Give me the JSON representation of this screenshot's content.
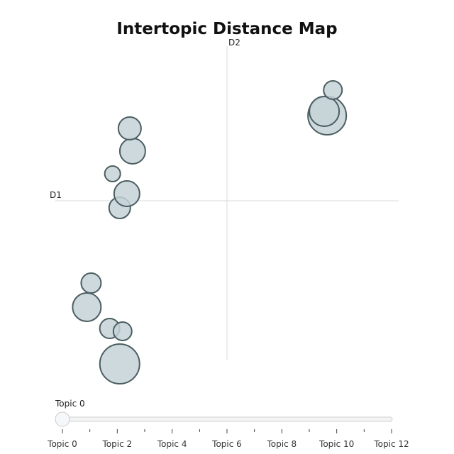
{
  "chart_data": {
    "type": "scatter",
    "title": "Intertopic Distance Map",
    "xlabel": "D1",
    "ylabel": "D2",
    "xlim": [
      -12,
      12
    ],
    "ylim": [
      -12,
      12
    ],
    "grid": false,
    "points": [
      {
        "x": -7.5,
        "y": -11.5,
        "size": 28
      },
      {
        "x": -9.8,
        "y": -7.5,
        "size": 20
      },
      {
        "x": -8.2,
        "y": -9.0,
        "size": 14
      },
      {
        "x": -7.3,
        "y": -9.2,
        "size": 13
      },
      {
        "x": -9.5,
        "y": -5.8,
        "size": 14
      },
      {
        "x": -7.5,
        "y": -0.5,
        "size": 15
      },
      {
        "x": -7.0,
        "y": 0.5,
        "size": 18
      },
      {
        "x": -8.0,
        "y": 1.9,
        "size": 11
      },
      {
        "x": -6.6,
        "y": 3.5,
        "size": 18
      },
      {
        "x": -6.8,
        "y": 5.1,
        "size": 16
      },
      {
        "x": 7.0,
        "y": 6.0,
        "size": 27
      },
      {
        "x": 6.8,
        "y": 6.3,
        "size": 21
      },
      {
        "x": 7.4,
        "y": 7.8,
        "size": 13
      }
    ],
    "marker_fill": "#c5d2d7",
    "marker_stroke": "#4a5e61"
  },
  "slider": {
    "current_label": "Topic 0",
    "ticks": [
      "Topic 0",
      "Topic 2",
      "Topic 4",
      "Topic 6",
      "Topic 8",
      "Topic 10",
      "Topic 12"
    ],
    "min": 0,
    "max": 12,
    "value": 0
  }
}
